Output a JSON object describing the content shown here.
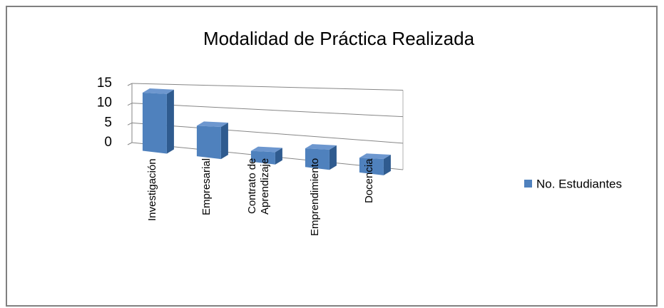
{
  "chart_data": {
    "type": "bar3d",
    "title": "Modalidad de Práctica   Realizada",
    "categories": [
      "Investigación",
      "Empresarial",
      "Contrato de Aprendizaje",
      "Emprendimiento",
      "Docencia"
    ],
    "series": [
      {
        "name": "No. Estudiantes",
        "color": "#4f81bd",
        "values": [
          14,
          7,
          2,
          4,
          3
        ]
      }
    ],
    "ylim": [
      0,
      15
    ],
    "yticks": [
      0,
      5,
      10,
      15
    ],
    "grid": true,
    "legend": "right"
  }
}
